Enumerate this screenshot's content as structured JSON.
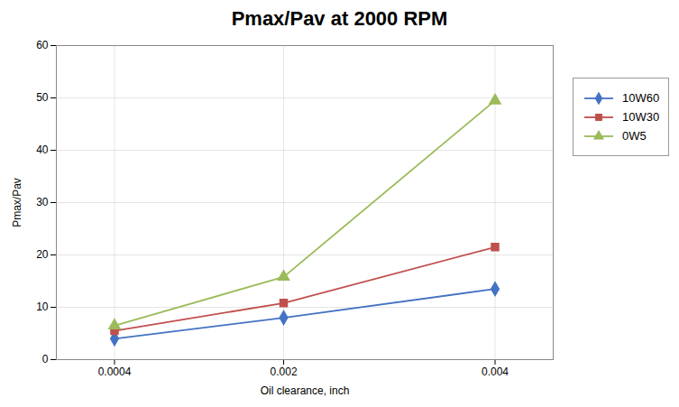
{
  "chart_data": {
    "type": "line",
    "title": "Pmax/Pav at 2000 RPM",
    "xlabel": "Oil clearance, inch",
    "ylabel": "Pmax/Pav",
    "x": [
      0.0004,
      0.002,
      0.004
    ],
    "series": [
      {
        "name": "10W60",
        "color": "#4472C4",
        "marker": "diamond",
        "values": [
          4.0,
          8.0,
          13.5
        ]
      },
      {
        "name": "10W30",
        "color": "#C0504D",
        "marker": "square",
        "values": [
          5.5,
          10.8,
          21.5
        ]
      },
      {
        "name": "0W5",
        "color": "#9BBB59",
        "marker": "triangle",
        "values": [
          6.5,
          15.8,
          49.5
        ]
      }
    ],
    "xlim": [
      -0.00015,
      0.00455
    ],
    "xticks": [
      0.0004,
      0.002,
      0.004
    ],
    "ylim": [
      0,
      60
    ],
    "yticks": [
      0,
      10,
      20,
      30,
      40,
      50,
      60
    ],
    "grid": true,
    "legend": "right"
  }
}
